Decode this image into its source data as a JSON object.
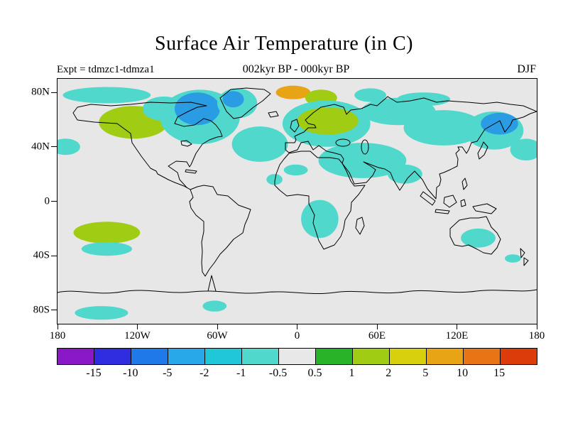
{
  "title": "Surface Air Temperature (in C)",
  "header": {
    "experiment": "Expt = tdmzc1-tdmza1",
    "period": "002kyr BP - 000kyr BP",
    "season": "DJF"
  },
  "colors": {
    "page_background": "#ffffff",
    "map_background": "#e7e7e7",
    "coastline": "#000000"
  },
  "map_axes": {
    "lat_ticks": [
      {
        "label": "80N",
        "lat": 80
      },
      {
        "label": "40N",
        "lat": 40
      },
      {
        "label": "0",
        "lat": 0
      },
      {
        "label": "40S",
        "lat": -40
      },
      {
        "label": "80S",
        "lat": -80
      }
    ],
    "lon_ticks": [
      {
        "label": "180",
        "lon": -180
      },
      {
        "label": "120W",
        "lon": -120
      },
      {
        "label": "60W",
        "lon": -60
      },
      {
        "label": "0",
        "lon": 0
      },
      {
        "label": "60E",
        "lon": 60
      },
      {
        "label": "120E",
        "lon": 120
      },
      {
        "label": "180",
        "lon": 180
      }
    ]
  },
  "colorbar": {
    "segment_colors": [
      "#8b18c8",
      "#2e2ee0",
      "#2079e8",
      "#28a8e8",
      "#1ec8d8",
      "#50d8cc",
      "#e8e8e8",
      "#28b428",
      "#a0cc14",
      "#d8d00c",
      "#e8a414",
      "#e87414",
      "#dc3c0a"
    ],
    "tick_labels": [
      "-15",
      "-10",
      "-5",
      "-2",
      "-1",
      "-0.5",
      "0.5",
      "1",
      "2",
      "5",
      "10",
      "15"
    ]
  },
  "chart_data": {
    "type": "heatmap",
    "title": "Surface Air Temperature (in C)",
    "subtitle": "002kyr BP - 000kyr BP",
    "experiment": "tdmzc1-tdmza1",
    "season": "DJF",
    "units": "degrees C",
    "projection": "equirectangular",
    "lon_range": [
      -180,
      180
    ],
    "lat_range": [
      -90,
      90
    ],
    "contour_levels": [
      -15,
      -10,
      -5,
      -2,
      -1,
      -0.5,
      0.5,
      1,
      2,
      5,
      10,
      15
    ],
    "region_palette": {
      "cyan": {
        "hex": "#50d8cc",
        "range": "-1 to -0.5"
      },
      "blue": {
        "hex": "#2a9ce4",
        "range": "-5 to -2"
      },
      "green": {
        "hex": "#a0cc14",
        "range": "1 to 2"
      },
      "orange": {
        "hex": "#e8a414",
        "range": "5 to 10"
      }
    },
    "anomaly_regions": [
      {
        "lon": -143,
        "lat": 78,
        "dlon": 33,
        "dlat": 6,
        "color": "cyan"
      },
      {
        "lon": -174,
        "lat": 40,
        "dlon": 11,
        "dlat": 6,
        "color": "cyan"
      },
      {
        "lon": -123,
        "lat": 58,
        "dlon": 26,
        "dlat": 12,
        "color": "green"
      },
      {
        "lon": -100,
        "lat": 68,
        "dlon": 16,
        "dlat": 9,
        "color": "cyan"
      },
      {
        "lon": -73,
        "lat": 62,
        "dlon": 30,
        "dlat": 20,
        "color": "cyan"
      },
      {
        "lon": -75,
        "lat": 68,
        "dlon": 17,
        "dlat": 12,
        "color": "blue"
      },
      {
        "lon": -45,
        "lat": 72,
        "dlon": 15,
        "dlat": 11,
        "color": "cyan"
      },
      {
        "lon": -48,
        "lat": 75,
        "dlon": 8,
        "dlat": 6,
        "color": "blue"
      },
      {
        "lon": -28,
        "lat": 42,
        "dlon": 21,
        "dlat": 13,
        "color": "cyan"
      },
      {
        "lon": -3,
        "lat": 80,
        "dlon": 13,
        "dlat": 5,
        "color": "orange"
      },
      {
        "lon": 18,
        "lat": 76,
        "dlon": 12,
        "dlat": 6,
        "color": "green"
      },
      {
        "lon": 22,
        "lat": 57,
        "dlon": 33,
        "dlat": 17,
        "color": "cyan"
      },
      {
        "lon": 23,
        "lat": 59,
        "dlon": 23,
        "dlat": 10,
        "color": "green"
      },
      {
        "lon": 55,
        "lat": 78,
        "dlon": 12,
        "dlat": 5,
        "color": "cyan"
      },
      {
        "lon": 95,
        "lat": 75,
        "dlon": 20,
        "dlat": 5,
        "color": "cyan"
      },
      {
        "lon": 76,
        "lat": 66,
        "dlon": 28,
        "dlat": 10,
        "color": "cyan"
      },
      {
        "lon": 110,
        "lat": 54,
        "dlon": 30,
        "dlat": 13,
        "color": "cyan"
      },
      {
        "lon": 148,
        "lat": 52,
        "dlon": 22,
        "dlat": 14,
        "color": "cyan"
      },
      {
        "lon": 152,
        "lat": 57,
        "dlon": 14,
        "dlat": 8,
        "color": "blue"
      },
      {
        "lon": 172,
        "lat": 38,
        "dlon": 12,
        "dlat": 8,
        "color": "cyan"
      },
      {
        "lon": 49,
        "lat": 30,
        "dlon": 33,
        "dlat": 13,
        "color": "cyan"
      },
      {
        "lon": 81,
        "lat": 20,
        "dlon": 13,
        "dlat": 7,
        "color": "cyan"
      },
      {
        "lon": -1,
        "lat": 23,
        "dlon": 9,
        "dlat": 4,
        "color": "cyan"
      },
      {
        "lon": -17,
        "lat": 16,
        "dlon": 6,
        "dlat": 4,
        "color": "cyan"
      },
      {
        "lon": 17,
        "lat": -13,
        "dlon": 14,
        "dlat": 14,
        "color": "cyan"
      },
      {
        "lon": -143,
        "lat": -23,
        "dlon": 25,
        "dlat": 8,
        "color": "green"
      },
      {
        "lon": -143,
        "lat": -35,
        "dlon": 19,
        "dlat": 5,
        "color": "cyan"
      },
      {
        "lon": 136,
        "lat": -27,
        "dlon": 13,
        "dlat": 7,
        "color": "cyan"
      },
      {
        "lon": 162,
        "lat": -42,
        "dlon": 6,
        "dlat": 3,
        "color": "cyan"
      },
      {
        "lon": -147,
        "lat": -82,
        "dlon": 20,
        "dlat": 5,
        "color": "cyan"
      },
      {
        "lon": -62,
        "lat": -77,
        "dlon": 9,
        "dlat": 4,
        "color": "cyan"
      }
    ]
  }
}
